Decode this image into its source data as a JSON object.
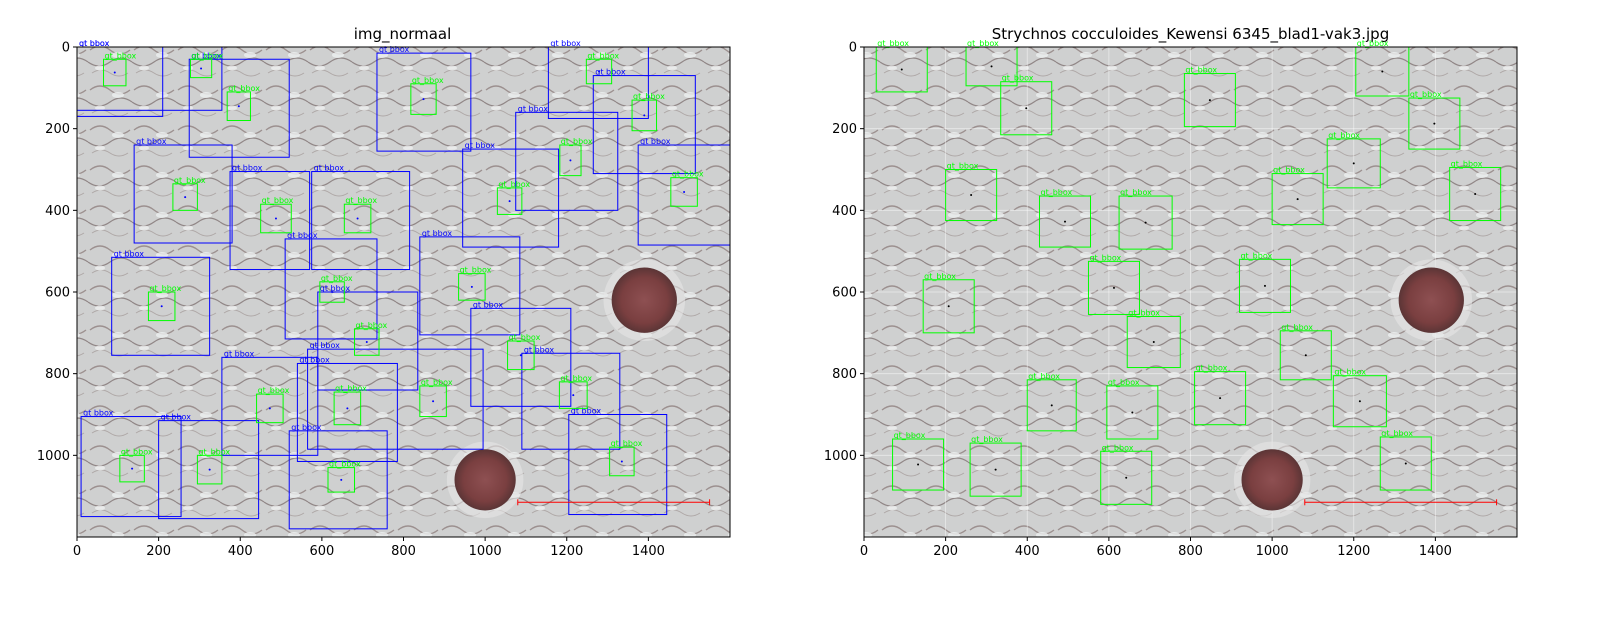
{
  "chart_data": [
    {
      "type": "image",
      "title": "img_normaal",
      "xlim": [
        0,
        1600
      ],
      "ylim": [
        1200,
        0
      ],
      "x_ticks": [
        "0",
        "200",
        "400",
        "600",
        "800",
        "1000",
        "1200",
        "1400"
      ],
      "y_ticks": [
        "0",
        "200",
        "400",
        "600",
        "800",
        "1000"
      ],
      "colors": {
        "gt": "#00ff00",
        "pred": "#0000ff",
        "scale_bar": "#ff0000",
        "pore": "#7a3f40"
      },
      "gt_label": "gt_bbox",
      "pred_label": "gt bbox",
      "pores": [
        {
          "x": 1390,
          "y": 620,
          "r": 80
        },
        {
          "x": 1000,
          "y": 1060,
          "r": 75
        }
      ],
      "scale_bar": {
        "x1": 1080,
        "x2": 1550,
        "y": 1115
      },
      "gt_boxes": [
        [
          65,
          30,
          120,
          95
        ],
        [
          278,
          30,
          330,
          75
        ],
        [
          368,
          110,
          425,
          180
        ],
        [
          818,
          90,
          880,
          165
        ],
        [
          1248,
          30,
          1310,
          90
        ],
        [
          1360,
          130,
          1420,
          205
        ],
        [
          1183,
          240,
          1235,
          315
        ],
        [
          1455,
          320,
          1520,
          390
        ],
        [
          235,
          335,
          295,
          400
        ],
        [
          450,
          385,
          525,
          455
        ],
        [
          655,
          385,
          720,
          455
        ],
        [
          1030,
          345,
          1090,
          410
        ],
        [
          175,
          600,
          240,
          670
        ],
        [
          935,
          555,
          1000,
          620
        ],
        [
          595,
          575,
          655,
          625
        ],
        [
          680,
          690,
          740,
          755
        ],
        [
          1055,
          720,
          1120,
          790
        ],
        [
          1182,
          820,
          1250,
          885
        ],
        [
          440,
          850,
          505,
          920
        ],
        [
          630,
          845,
          695,
          925
        ],
        [
          840,
          830,
          905,
          905
        ],
        [
          105,
          1000,
          165,
          1065
        ],
        [
          295,
          1000,
          355,
          1070
        ],
        [
          615,
          1030,
          680,
          1090
        ],
        [
          1305,
          980,
          1365,
          1050
        ]
      ],
      "pred_boxes": [
        [
          0,
          0,
          210,
          170
        ],
        [
          0,
          0,
          355,
          155
        ],
        [
          275,
          30,
          520,
          270
        ],
        [
          735,
          15,
          965,
          255
        ],
        [
          1155,
          0,
          1400,
          175
        ],
        [
          1265,
          70,
          1515,
          310
        ],
        [
          1075,
          160,
          1325,
          400
        ],
        [
          945,
          250,
          1180,
          490
        ],
        [
          1375,
          240,
          1600,
          485
        ],
        [
          140,
          240,
          380,
          480
        ],
        [
          375,
          305,
          570,
          545
        ],
        [
          575,
          305,
          815,
          545
        ],
        [
          510,
          470,
          735,
          715
        ],
        [
          840,
          465,
          1085,
          705
        ],
        [
          85,
          515,
          325,
          755
        ],
        [
          590,
          600,
          835,
          840
        ],
        [
          965,
          640,
          1210,
          880
        ],
        [
          355,
          760,
          590,
          1000
        ],
        [
          540,
          775,
          785,
          1015
        ],
        [
          565,
          740,
          995,
          985
        ],
        [
          1090,
          750,
          1330,
          985
        ],
        [
          10,
          905,
          255,
          1150
        ],
        [
          200,
          915,
          445,
          1155
        ],
        [
          520,
          940,
          760,
          1180
        ],
        [
          1205,
          900,
          1445,
          1145
        ]
      ]
    },
    {
      "type": "image",
      "title": "Strychnos cocculoides_Kewensi 6345_blad1-vak3.jpg",
      "xlim": [
        0,
        1600
      ],
      "ylim": [
        1200,
        0
      ],
      "x_ticks": [
        "0",
        "200",
        "400",
        "600",
        "800",
        "1000",
        "1200",
        "1400"
      ],
      "y_ticks": [
        "0",
        "200",
        "400",
        "600",
        "800",
        "1000"
      ],
      "colors": {
        "gt": "#00ff00",
        "scale_bar": "#ff0000",
        "pore": "#7a3f40"
      },
      "gt_label": "gt_bbox",
      "pores": [
        {
          "x": 1390,
          "y": 620,
          "r": 80
        },
        {
          "x": 1000,
          "y": 1060,
          "r": 75
        }
      ],
      "scale_bar": {
        "x1": 1080,
        "x2": 1550,
        "y": 1115
      },
      "gt_boxes": [
        [
          30,
          0,
          155,
          110
        ],
        [
          250,
          0,
          375,
          95
        ],
        [
          335,
          85,
          460,
          215
        ],
        [
          785,
          65,
          910,
          195
        ],
        [
          1205,
          0,
          1335,
          120
        ],
        [
          1335,
          125,
          1460,
          250
        ],
        [
          1135,
          225,
          1265,
          345
        ],
        [
          1435,
          295,
          1560,
          425
        ],
        [
          200,
          300,
          325,
          425
        ],
        [
          430,
          365,
          555,
          490
        ],
        [
          625,
          365,
          755,
          495
        ],
        [
          1000,
          310,
          1125,
          435
        ],
        [
          145,
          570,
          270,
          700
        ],
        [
          920,
          520,
          1045,
          650
        ],
        [
          550,
          525,
          675,
          655
        ],
        [
          645,
          660,
          775,
          785
        ],
        [
          1020,
          695,
          1145,
          815
        ],
        [
          1150,
          805,
          1280,
          930
        ],
        [
          400,
          815,
          520,
          940
        ],
        [
          595,
          830,
          720,
          960
        ],
        [
          810,
          795,
          935,
          925
        ],
        [
          70,
          960,
          195,
          1085
        ],
        [
          260,
          970,
          385,
          1100
        ],
        [
          580,
          990,
          705,
          1120
        ],
        [
          1265,
          955,
          1390,
          1085
        ]
      ]
    }
  ]
}
